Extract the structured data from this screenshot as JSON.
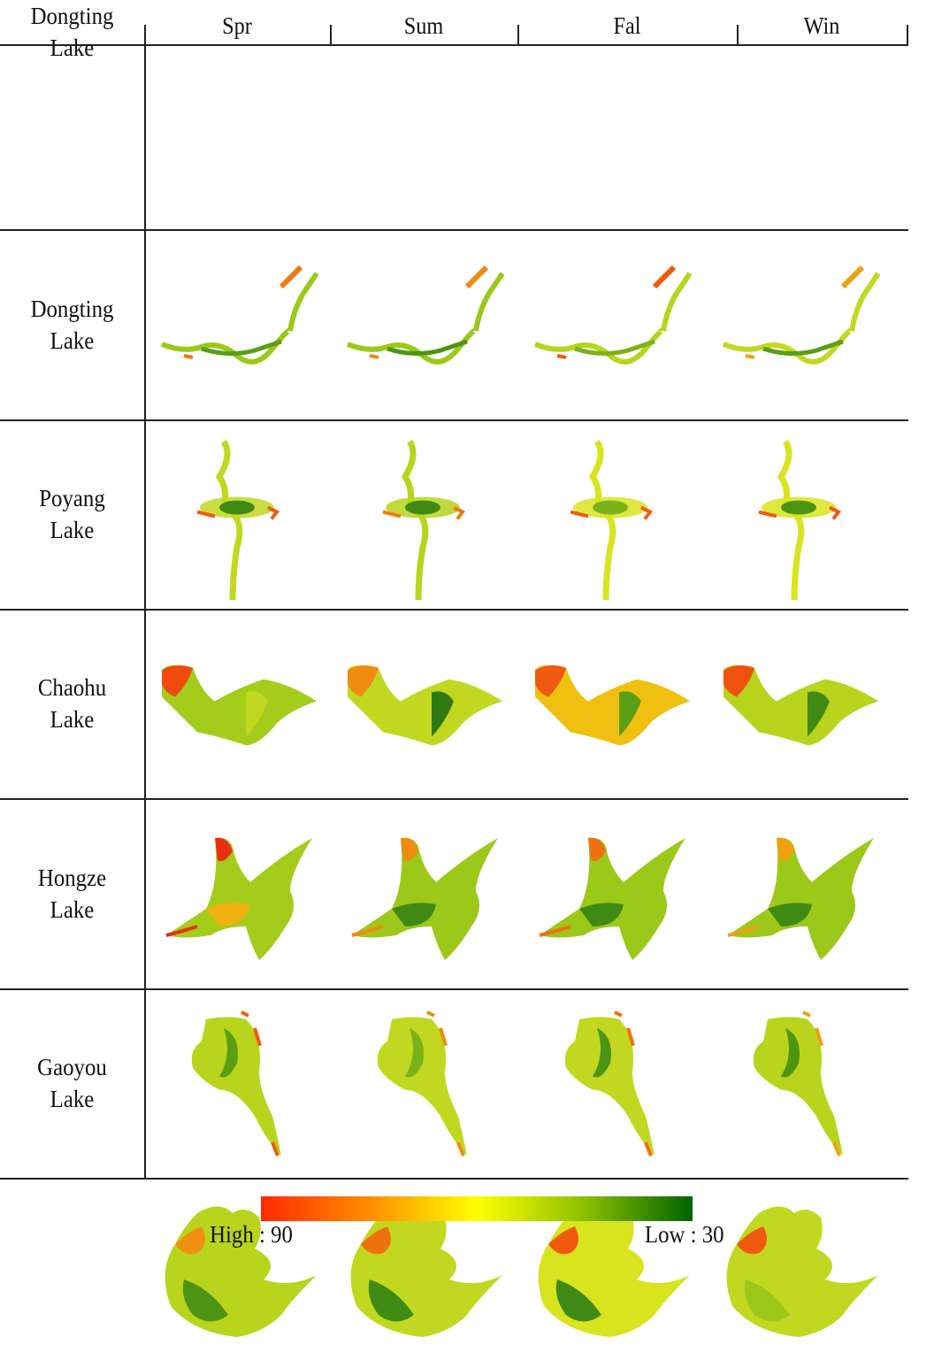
{
  "columns": [
    "Spr",
    "Sum",
    "Fal",
    "Win"
  ],
  "rows": [
    {
      "label_line1": "Dongting",
      "label_line2": "Lake",
      "shape": "river",
      "cells": [
        [
          "#9cc81a",
          "#5a9e14",
          "#f07a10"
        ],
        [
          "#9cc81a",
          "#4e9414",
          "#f08a10"
        ],
        [
          "#b8d41c",
          "#7bb218",
          "#f05a10"
        ],
        [
          "#c2d820",
          "#5a9e14",
          "#f0a010"
        ]
      ]
    },
    {
      "label_line1": "Poyang",
      "label_line2": "Lake",
      "shape": "branch",
      "cells": [
        [
          "#c2d820",
          "#3f8a12",
          "#f05a10"
        ],
        [
          "#b8d41c",
          "#3f8a12",
          "#f07a10"
        ],
        [
          "#d8e41e",
          "#7bb218",
          "#f05a10"
        ],
        [
          "#d8e41e",
          "#4e9414",
          "#f05a10"
        ]
      ]
    },
    {
      "label_line1": "Chaohu",
      "label_line2": "Lake",
      "shape": "boomerang",
      "cells": [
        [
          "#a4cc1a",
          "#c2d820",
          "#f04a10"
        ],
        [
          "#c2d820",
          "#2f7a10",
          "#f08a10"
        ],
        [
          "#f0c010",
          "#5a9e14",
          "#f05a10"
        ],
        [
          "#b8d41c",
          "#3f8a12",
          "#f05010"
        ]
      ]
    },
    {
      "label_line1": "Hongze",
      "label_line2": "Lake",
      "shape": "star",
      "cells": [
        [
          "#a4cc1a",
          "#f0b010",
          "#e83010"
        ],
        [
          "#9cc81a",
          "#3f8a12",
          "#f08a10"
        ],
        [
          "#9cc81a",
          "#3f8a12",
          "#f07010"
        ],
        [
          "#9cc81a",
          "#3f8a12",
          "#f0a010"
        ]
      ]
    },
    {
      "label_line1": "Gaoyou",
      "label_line2": "Lake",
      "shape": "vertical",
      "cells": [
        [
          "#b8d41c",
          "#5a9e14",
          "#f05a10"
        ],
        [
          "#c2d820",
          "#7bb218",
          "#f08a10"
        ],
        [
          "#c2d820",
          "#4e9414",
          "#f07010"
        ],
        [
          "#b8d41c",
          "#4e9414",
          "#f0a010"
        ]
      ]
    },
    {
      "label_line1": "Dongting",
      "label_line2": "Lake",
      "shape": "round",
      "cells": [
        [
          "#b8d41c",
          "#4e9414",
          "#f09010"
        ],
        [
          "#c2d820",
          "#3f8a12",
          "#f07010"
        ],
        [
          "#d8e41e",
          "#3f8a12",
          "#f05a10"
        ],
        [
          "#c2d820",
          "#9cc81a",
          "#f05a10"
        ]
      ]
    }
  ],
  "legend": {
    "high_label": "High : 90",
    "low_label": "Low : 30",
    "colors": [
      "#ff2a00",
      "#ff8c00",
      "#ffff00",
      "#8cbf00",
      "#006400"
    ]
  }
}
